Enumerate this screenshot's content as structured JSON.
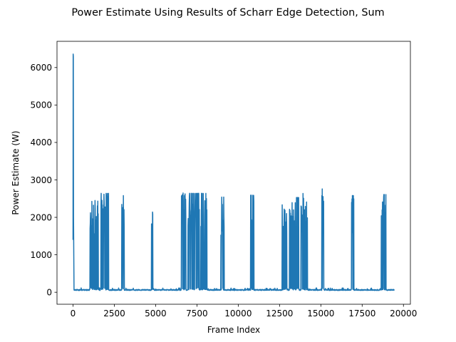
{
  "chart_data": {
    "type": "line",
    "title": "Power Estimate Using Results of Scharr Edge Detection, Sum",
    "xlabel": "Frame Index",
    "ylabel": "Power Estimate (W)",
    "xlim": [
      -970,
      20420
    ],
    "ylim": [
      -320,
      6700
    ],
    "xticks": [
      0,
      2500,
      5000,
      7500,
      10000,
      12500,
      15000,
      17500,
      20000
    ],
    "xtick_labels": [
      "0",
      "2500",
      "5000",
      "7500",
      "10000",
      "12500",
      "15000",
      "17500",
      "20000"
    ],
    "yticks": [
      0,
      1000,
      2000,
      3000,
      4000,
      5000,
      6000
    ],
    "ytick_labels": [
      "0",
      "1000",
      "2000",
      "3000",
      "4000",
      "5000",
      "6000"
    ],
    "grid": false,
    "baseline_watts": 60,
    "series": [
      {
        "color": "#1f77b4",
        "frame_range": [
          0,
          19450
        ],
        "startup_spike": {
          "frames": [
            0,
            60
          ],
          "peak": 6360,
          "start_value": 1400
        },
        "active_bursts": [
          {
            "start": 1000,
            "end": 1600,
            "peak": 2450
          },
          {
            "start": 1650,
            "end": 2150,
            "peak": 2640
          },
          {
            "start": 2950,
            "end": 3100,
            "peak": 2580
          },
          {
            "start": 4750,
            "end": 4900,
            "peak": 2680
          },
          {
            "start": 6550,
            "end": 6850,
            "peak": 2650
          },
          {
            "start": 6950,
            "end": 7650,
            "peak": 2640
          },
          {
            "start": 7700,
            "end": 8100,
            "peak": 2640
          },
          {
            "start": 8950,
            "end": 9150,
            "peak": 2540
          },
          {
            "start": 10750,
            "end": 10950,
            "peak": 2590
          },
          {
            "start": 12650,
            "end": 12950,
            "peak": 2620
          },
          {
            "start": 13100,
            "end": 13700,
            "peak": 2530
          },
          {
            "start": 13800,
            "end": 14200,
            "peak": 2640
          },
          {
            "start": 15050,
            "end": 15200,
            "peak": 2760
          },
          {
            "start": 16850,
            "end": 17000,
            "peak": 2580
          },
          {
            "start": 18650,
            "end": 18950,
            "peak": 2610
          }
        ]
      }
    ]
  }
}
